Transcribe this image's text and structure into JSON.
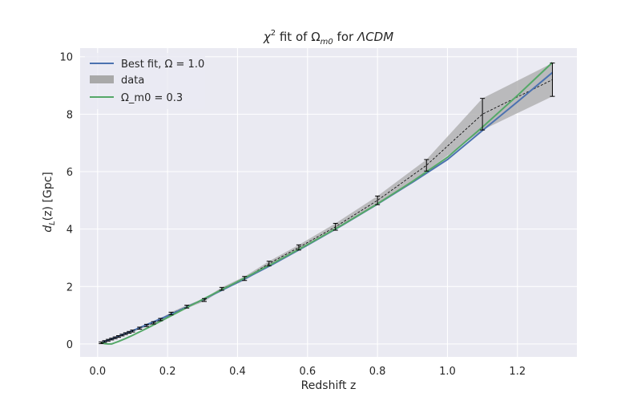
{
  "chart_data": {
    "type": "line",
    "title_parts": {
      "chi": "χ",
      "chi_sup": "2",
      "fit_of": " fit of ",
      "omega": "Ω",
      "omega_sub": "m0",
      "for": " for ",
      "lcdm": "ΛCDM"
    },
    "xlabel": "Redshift z",
    "ylabel_parts": {
      "d": "d",
      "sub": "L",
      "rest": "(z) [Gpc]"
    },
    "xlim": [
      -0.05,
      1.37
    ],
    "ylim": [
      -0.45,
      10.3
    ],
    "xticks": [
      0.0,
      0.2,
      0.4,
      0.6,
      0.8,
      1.0,
      1.2
    ],
    "xtick_labels": [
      "0.0",
      "0.2",
      "0.4",
      "0.6",
      "0.8",
      "1.0",
      "1.2"
    ],
    "yticks": [
      0,
      2,
      4,
      6,
      8,
      10
    ],
    "ytick_labels": [
      "0",
      "2",
      "4",
      "6",
      "8",
      "10"
    ],
    "grid": true,
    "legend_position": "top-left",
    "colors": {
      "background": "#eaeaf2",
      "grid": "#ffffff",
      "best_fit": "#4c72b0",
      "model": "#55a868",
      "band": "#a9a9a9",
      "errorbar": "#000000"
    },
    "series": [
      {
        "name": "Best fit, Ω = 1.0",
        "kind": "line",
        "x": [
          0.01,
          0.03,
          0.05,
          0.1,
          0.15,
          0.2,
          0.3,
          0.4,
          0.5,
          0.6,
          0.7,
          0.8,
          0.9,
          1.0,
          1.1,
          1.2,
          1.3
        ],
        "y": [
          0.04,
          0.13,
          0.22,
          0.46,
          0.72,
          0.98,
          1.54,
          2.14,
          2.77,
          3.44,
          4.14,
          4.87,
          5.63,
          6.42,
          7.43,
          8.43,
          9.45
        ]
      },
      {
        "name": "data",
        "kind": "band",
        "x": [
          0.01,
          0.02,
          0.03,
          0.04,
          0.05,
          0.06,
          0.07,
          0.08,
          0.09,
          0.1,
          0.12,
          0.14,
          0.16,
          0.18,
          0.21,
          0.255,
          0.305,
          0.355,
          0.42,
          0.49,
          0.575,
          0.68,
          0.8,
          0.94,
          1.1,
          1.3
        ],
        "y": [
          0.04,
          0.085,
          0.13,
          0.17,
          0.215,
          0.26,
          0.31,
          0.36,
          0.405,
          0.45,
          0.55,
          0.645,
          0.735,
          0.85,
          1.06,
          1.3,
          1.53,
          1.92,
          2.28,
          2.8,
          3.36,
          4.08,
          5.0,
          6.22,
          8.0,
          9.2
        ],
        "err": [
          0.03,
          0.03,
          0.03,
          0.03,
          0.03,
          0.03,
          0.03,
          0.03,
          0.03,
          0.035,
          0.035,
          0.04,
          0.04,
          0.04,
          0.045,
          0.05,
          0.05,
          0.05,
          0.07,
          0.08,
          0.09,
          0.12,
          0.15,
          0.2,
          0.55,
          0.58
        ]
      },
      {
        "name": "Ω_m0 = 0.3",
        "kind": "line",
        "x": [
          0.01,
          0.02,
          0.03,
          0.04,
          0.06,
          0.08,
          0.1,
          0.15,
          0.2,
          0.3,
          0.4,
          0.5,
          0.6,
          0.7,
          0.8,
          0.9,
          1.0,
          1.1,
          1.2,
          1.3
        ],
        "y": [
          0.04,
          0.01,
          0.0,
          0.0,
          0.09,
          0.19,
          0.3,
          0.6,
          0.92,
          1.55,
          2.17,
          2.8,
          3.46,
          4.15,
          4.88,
          5.66,
          6.5,
          7.55,
          8.65,
          9.8
        ]
      }
    ]
  }
}
